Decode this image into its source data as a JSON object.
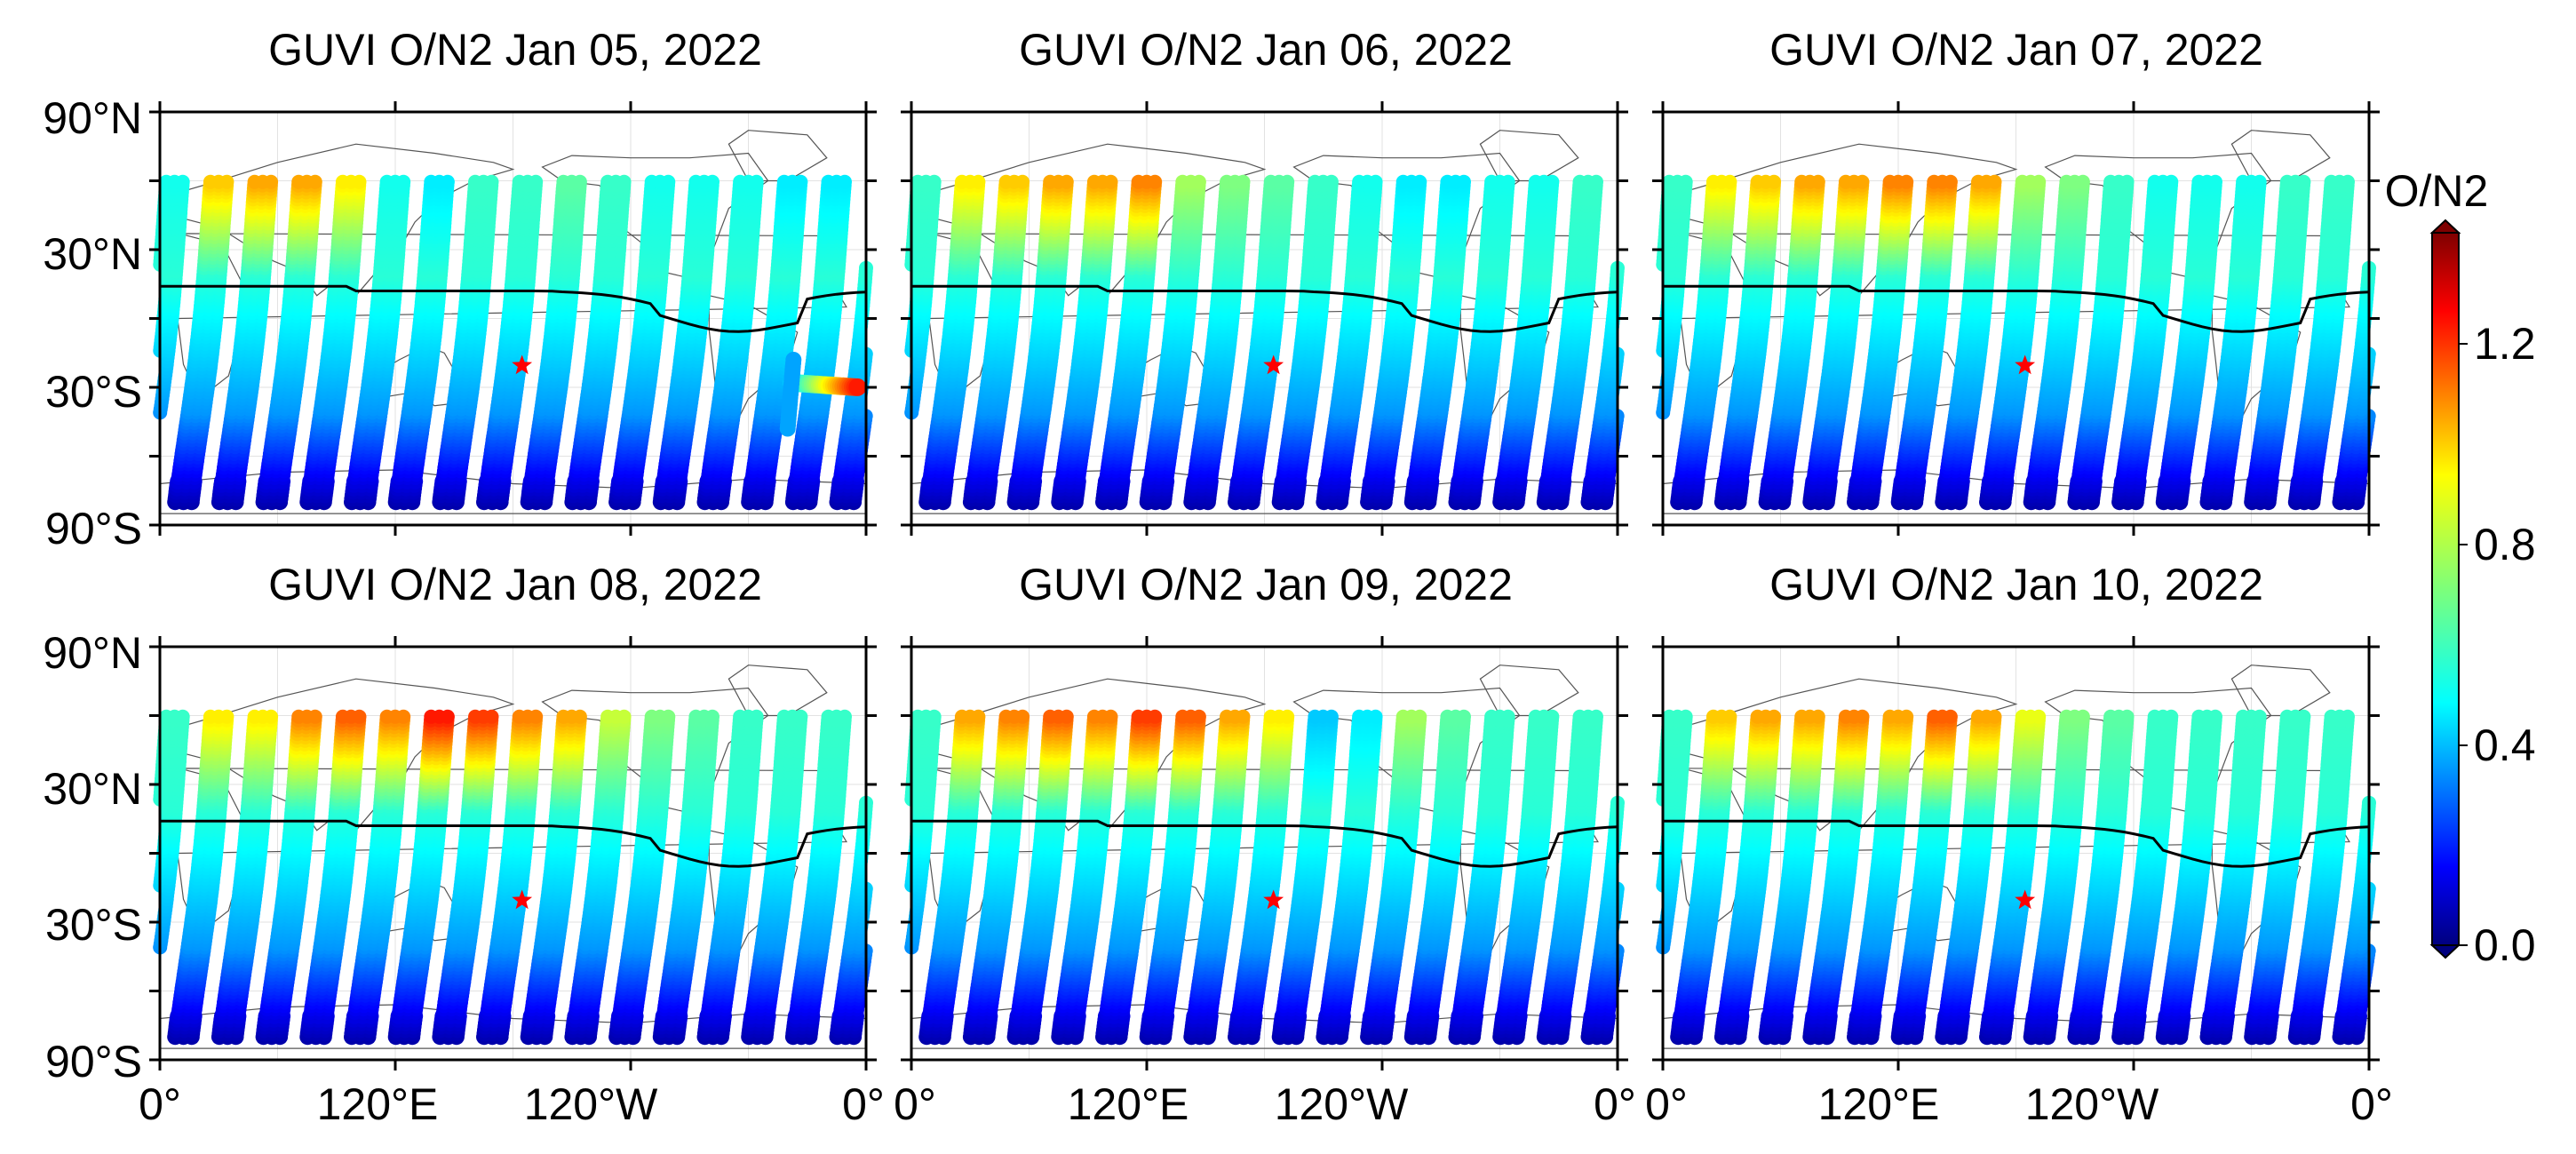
{
  "chart_data": {
    "type": "scatter",
    "colorbar": {
      "label": "O/N2",
      "range": [
        0.0,
        1.4
      ],
      "ticks": [
        0.0,
        0.4,
        0.8,
        1.2
      ],
      "tick_labels": [
        "0.0",
        "0.4",
        "0.8",
        "1.2"
      ],
      "colormap": "jet"
    },
    "shared_axes": {
      "x_ticks_deg": [
        0,
        120,
        240,
        360
      ],
      "x_tick_labels": [
        "0°",
        "120°E",
        "120°W",
        "0°"
      ],
      "y_ticks_deg": [
        90,
        30,
        -30,
        -90
      ],
      "y_tick_labels": [
        "90°N",
        "30°N",
        "30°S",
        "90°S"
      ],
      "xlim": [
        0,
        360
      ],
      "ylim": [
        -90,
        90
      ]
    },
    "marker": {
      "label": "star",
      "lon": 184.6,
      "lat": -20.5,
      "color": "#ff0000"
    },
    "panels": [
      {
        "title": "GUVI O/N2 Jan 05, 2022",
        "enhanced": [
          0.95,
          1.0,
          1.0,
          0.9,
          0.55,
          0.5,
          0.6,
          0.6,
          0.65,
          0.6,
          0.55,
          0.55,
          0.55,
          0.5,
          0.5,
          0.55
        ],
        "storm_patch": true
      },
      {
        "title": "GUVI O/N2 Jan 06, 2022",
        "enhanced": [
          0.9,
          0.95,
          1.0,
          1.0,
          1.05,
          0.75,
          0.7,
          0.65,
          0.6,
          0.55,
          0.5,
          0.5,
          0.55,
          0.55,
          0.6,
          0.6
        ],
        "storm_patch": false
      },
      {
        "title": "GUVI O/N2 Jan 07, 2022",
        "enhanced": [
          0.9,
          0.95,
          1.0,
          1.0,
          1.05,
          1.05,
          1.0,
          0.75,
          0.7,
          0.6,
          0.55,
          0.55,
          0.55,
          0.6,
          0.6,
          0.6
        ],
        "storm_patch": false
      },
      {
        "title": "GUVI O/N2 Jan 08, 2022",
        "enhanced": [
          0.9,
          0.9,
          1.05,
          1.1,
          1.05,
          1.2,
          1.15,
          1.05,
          1.0,
          0.8,
          0.7,
          0.65,
          0.6,
          0.6,
          0.6,
          0.6
        ],
        "storm_patch": false
      },
      {
        "title": "GUVI O/N2 Jan 09, 2022",
        "enhanced": [
          1.0,
          1.05,
          1.1,
          1.05,
          1.15,
          1.1,
          1.0,
          0.9,
          0.45,
          0.5,
          0.75,
          0.65,
          0.6,
          0.6,
          0.6,
          0.6
        ],
        "storm_patch": false
      },
      {
        "title": "GUVI O/N2 Jan 10, 2022",
        "enhanced": [
          0.95,
          1.0,
          1.0,
          1.05,
          1.0,
          1.1,
          1.0,
          0.85,
          0.7,
          0.65,
          0.6,
          0.6,
          0.6,
          0.6,
          0.6,
          0.6
        ],
        "storm_patch": false
      }
    ]
  }
}
